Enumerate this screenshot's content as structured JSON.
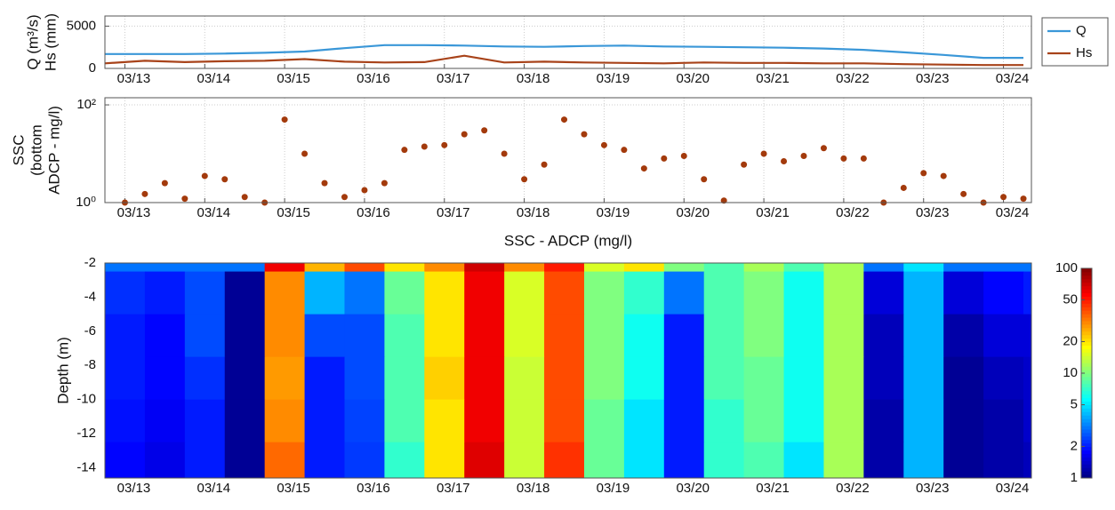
{
  "chart_data": [
    {
      "type": "line",
      "ylabel": [
        "Q (m³/s)",
        "Hs (mm)"
      ],
      "x": [
        12.75,
        13.25,
        13.75,
        14.25,
        14.75,
        15.25,
        15.75,
        16.25,
        16.75,
        17.25,
        17.75,
        18.25,
        18.75,
        19.25,
        19.75,
        20.25,
        20.75,
        21.25,
        21.75,
        22.25,
        22.75,
        23.25,
        23.75,
        24.25
      ],
      "series": [
        {
          "name": "Q",
          "color": "#3a97d8",
          "values": [
            1700,
            1700,
            1700,
            1750,
            1850,
            2000,
            2400,
            2750,
            2750,
            2700,
            2600,
            2550,
            2650,
            2700,
            2600,
            2550,
            2500,
            2450,
            2350,
            2200,
            1900,
            1600,
            1250,
            1250
          ]
        },
        {
          "name": "Hs",
          "color": "#a8431a",
          "values": [
            600,
            900,
            750,
            850,
            900,
            1100,
            800,
            700,
            750,
            1500,
            700,
            800,
            700,
            650,
            600,
            700,
            650,
            650,
            600,
            600,
            500,
            450,
            400,
            400
          ]
        }
      ],
      "xlim": [
        12.75,
        24.35
      ],
      "ylim": [
        0,
        6200
      ],
      "yticks": [
        0,
        5000
      ],
      "xticks": [
        {
          "value": 13,
          "label": "03/13"
        },
        {
          "value": 14,
          "label": "03/14"
        },
        {
          "value": 15,
          "label": "03/15"
        },
        {
          "value": 16,
          "label": "03/16"
        },
        {
          "value": 17,
          "label": "03/17"
        },
        {
          "value": 18,
          "label": "03/18"
        },
        {
          "value": 19,
          "label": "03/19"
        },
        {
          "value": 20,
          "label": "03/20"
        },
        {
          "value": 21,
          "label": "03/21"
        },
        {
          "value": 22,
          "label": "03/22"
        },
        {
          "value": 23,
          "label": "03/23"
        },
        {
          "value": 24,
          "label": "03/24"
        }
      ],
      "grid": true,
      "legend": "outside"
    },
    {
      "type": "scatter",
      "ylabel": [
        "SSC",
        "(bottom",
        "ADCP - mg/l)"
      ],
      "color": "#a33a0c",
      "x": [
        13.0,
        13.25,
        13.5,
        13.75,
        14.0,
        14.25,
        14.5,
        14.75,
        15.0,
        15.25,
        15.5,
        15.75,
        16.0,
        16.25,
        16.5,
        16.75,
        17.0,
        17.25,
        17.5,
        17.75,
        18.0,
        18.25,
        18.5,
        18.75,
        19.0,
        19.25,
        19.5,
        19.75,
        20.0,
        20.25,
        20.5,
        20.75,
        21.0,
        21.25,
        21.5,
        21.75,
        22.0,
        22.25,
        22.5,
        22.75,
        23.0,
        23.25,
        23.5,
        23.75,
        24.0,
        24.25
      ],
      "values": [
        1.0,
        1.5,
        2.5,
        1.2,
        3.5,
        3.0,
        1.3,
        1.0,
        50,
        10,
        2.5,
        1.3,
        1.8,
        2.5,
        12,
        14,
        15,
        25,
        30,
        10,
        3,
        6,
        50,
        25,
        15,
        12,
        5,
        8,
        9,
        3,
        1.1,
        6,
        10,
        7,
        9,
        13,
        8,
        8,
        1.0,
        2.0,
        4,
        3.5,
        1.5,
        1.0,
        1.3,
        1.2
      ],
      "xlim": [
        12.75,
        24.35
      ],
      "ylim": [
        1,
        140
      ],
      "yscale": "log",
      "yticks": [
        {
          "value": 1,
          "label": "10⁰"
        },
        {
          "value": 100,
          "label": "10²"
        }
      ],
      "xticks": [
        {
          "value": 13,
          "label": "03/13"
        },
        {
          "value": 14,
          "label": "03/14"
        },
        {
          "value": 15,
          "label": "03/15"
        },
        {
          "value": 16,
          "label": "03/16"
        },
        {
          "value": 17,
          "label": "03/17"
        },
        {
          "value": 18,
          "label": "03/18"
        },
        {
          "value": 19,
          "label": "03/19"
        },
        {
          "value": 20,
          "label": "03/20"
        },
        {
          "value": 21,
          "label": "03/21"
        },
        {
          "value": 22,
          "label": "03/22"
        },
        {
          "value": 23,
          "label": "03/23"
        },
        {
          "value": 24,
          "label": "03/24"
        }
      ],
      "grid": true
    },
    {
      "type": "heatmap",
      "title": "SSC - ADCP (mg/l)",
      "ylabel": [
        "Depth  (m)"
      ],
      "x_edges": [
        12.75,
        13.25,
        13.75,
        14.25,
        14.75,
        15.25,
        15.75,
        16.25,
        16.75,
        17.25,
        17.75,
        18.25,
        18.75,
        19.25,
        19.75,
        20.25,
        20.75,
        21.25,
        21.75,
        22.25,
        22.75,
        23.25,
        23.75,
        24.25,
        24.75
      ],
      "y_edges": [
        -2,
        -2.5,
        -5,
        -7.5,
        -10,
        -12.5,
        -14.6
      ],
      "z": [
        [
          3,
          3,
          3,
          3,
          60,
          25,
          40,
          20,
          30,
          70,
          30,
          50,
          15,
          20,
          10,
          8,
          12,
          8,
          12,
          3,
          5,
          3,
          3,
          3
        ],
        [
          2.2,
          2,
          2.5,
          1.1,
          30,
          4,
          3,
          9,
          20,
          60,
          15,
          40,
          10,
          7,
          3,
          8,
          10,
          6,
          12,
          1.5,
          4,
          1.5,
          1.8,
          2
        ],
        [
          2,
          1.8,
          2.5,
          1.1,
          30,
          2.5,
          2.5,
          8,
          20,
          60,
          15,
          40,
          10,
          6,
          2,
          8,
          10,
          6,
          12,
          1.3,
          4,
          1.2,
          1.5,
          1.5
        ],
        [
          2,
          1.8,
          2.2,
          1.1,
          28,
          2,
          2.5,
          8,
          22,
          60,
          14,
          40,
          10,
          6,
          2,
          8,
          9,
          6,
          12,
          1.3,
          4,
          1.1,
          1.3,
          1.4
        ],
        [
          1.9,
          1.7,
          2,
          1.1,
          30,
          2,
          2.4,
          8,
          20,
          60,
          14,
          40,
          9,
          5,
          2,
          7,
          9,
          6,
          12,
          1.2,
          4,
          1.1,
          1.2,
          1.4
        ],
        [
          1.8,
          1.6,
          2,
          1.1,
          35,
          2,
          2.3,
          7,
          20,
          65,
          14,
          45,
          9,
          5,
          2,
          7,
          8,
          5,
          12,
          1.2,
          4,
          1.1,
          1.2,
          1.3
        ]
      ],
      "xlim": [
        12.75,
        24.35
      ],
      "ylim": [
        -14.6,
        -2
      ],
      "yticks": [
        -2,
        -4,
        -6,
        -8,
        -10,
        -12,
        -14
      ],
      "xticks": [
        {
          "value": 13,
          "label": "03/13"
        },
        {
          "value": 14,
          "label": "03/14"
        },
        {
          "value": 15,
          "label": "03/15"
        },
        {
          "value": 16,
          "label": "03/16"
        },
        {
          "value": 17,
          "label": "03/17"
        },
        {
          "value": 18,
          "label": "03/18"
        },
        {
          "value": 19,
          "label": "03/19"
        },
        {
          "value": 20,
          "label": "03/20"
        },
        {
          "value": 21,
          "label": "03/21"
        },
        {
          "value": 22,
          "label": "03/22"
        },
        {
          "value": 23,
          "label": "03/23"
        },
        {
          "value": 24,
          "label": "03/24"
        }
      ],
      "colormap": "jet",
      "color_scale": "log",
      "clim": [
        1,
        100
      ],
      "cticks": [
        1,
        2,
        5,
        10,
        20,
        50,
        100
      ],
      "grid": false
    }
  ]
}
